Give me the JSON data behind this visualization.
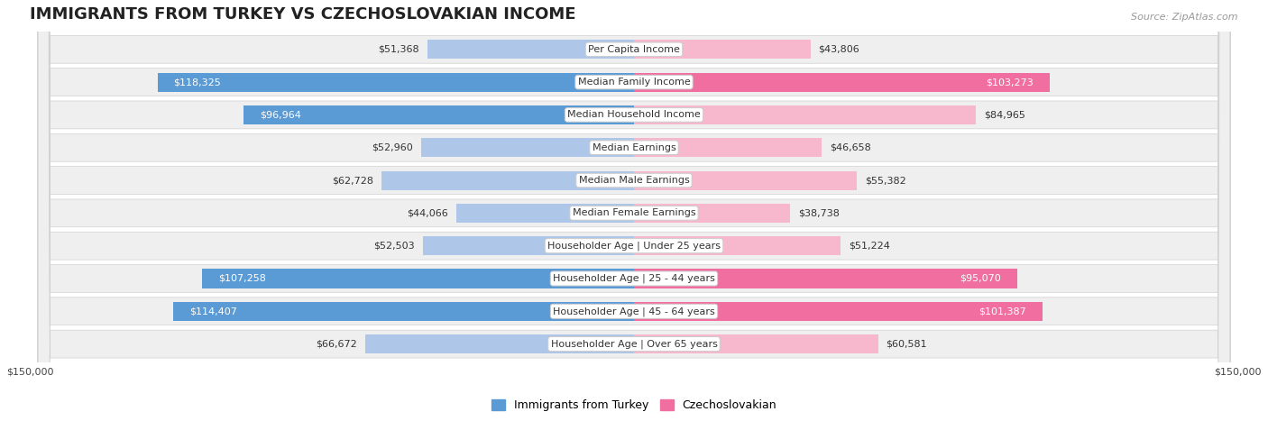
{
  "title": "IMMIGRANTS FROM TURKEY VS CZECHOSLOVAKIAN INCOME",
  "source": "Source: ZipAtlas.com",
  "categories": [
    "Per Capita Income",
    "Median Family Income",
    "Median Household Income",
    "Median Earnings",
    "Median Male Earnings",
    "Median Female Earnings",
    "Householder Age | Under 25 years",
    "Householder Age | 25 - 44 years",
    "Householder Age | 45 - 64 years",
    "Householder Age | Over 65 years"
  ],
  "turkey_values": [
    51368,
    118325,
    96964,
    52960,
    62728,
    44066,
    52503,
    107258,
    114407,
    66672
  ],
  "czech_values": [
    43806,
    103273,
    84965,
    46658,
    55382,
    38738,
    51224,
    95070,
    101387,
    60581
  ],
  "turkey_color_light": "#aec6e8",
  "turkey_color_dark": "#5b9bd5",
  "czech_color_light": "#f7b8ce",
  "czech_color_dark": "#f06fa0",
  "turkey_label": "Immigrants from Turkey",
  "czech_label": "Czechoslovakian",
  "axis_max": 150000,
  "bar_height": 0.58,
  "row_bg_color": "#efefef",
  "row_border_color": "#d0d0d0",
  "title_fontsize": 13,
  "label_fontsize": 8.0,
  "value_fontsize": 8.0,
  "legend_fontsize": 9,
  "source_fontsize": 8,
  "inside_threshold": 85000
}
